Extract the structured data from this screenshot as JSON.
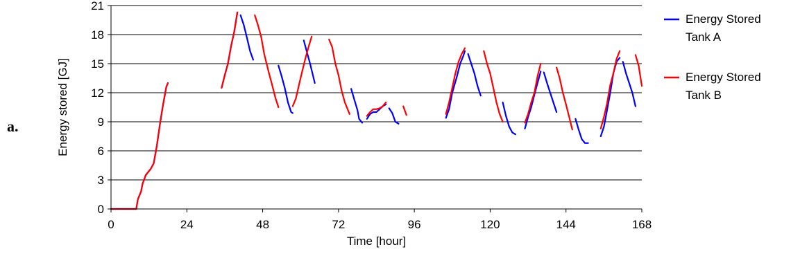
{
  "panel_label": "a.",
  "chart_data": {
    "type": "line",
    "title": "",
    "xlabel": "Time [hour]",
    "ylabel": "Energy stored [GJ]",
    "xlim": [
      0,
      168
    ],
    "ylim": [
      0,
      21
    ],
    "xticks": [
      0,
      24,
      48,
      72,
      96,
      120,
      144,
      168
    ],
    "yticks": [
      0,
      3,
      6,
      9,
      12,
      15,
      18,
      21
    ],
    "grid": "horizontal",
    "legend_position": "right",
    "series": [
      {
        "name_lines": [
          "Energy Stored",
          "Tank A"
        ],
        "color": "#0000ff",
        "segments": [
          [
            [
              0,
              0
            ],
            [
              8,
              0
            ],
            [
              8.5,
              1
            ],
            [
              9.5,
              1.8
            ],
            [
              10,
              2.6
            ],
            [
              11,
              3.5
            ],
            [
              12.5,
              4.1
            ],
            [
              13.5,
              4.7
            ],
            [
              14.5,
              6.5
            ],
            [
              15.5,
              8.8
            ],
            [
              16.5,
              10.8
            ],
            [
              17.5,
              12.6
            ],
            [
              18,
              13
            ]
          ],
          [
            [
              35,
              12.5
            ],
            [
              36,
              13.8
            ],
            [
              37,
              15
            ],
            [
              38,
              16.8
            ],
            [
              39,
              18.3
            ],
            [
              40,
              20.3
            ]
          ],
          [
            [
              41,
              20
            ],
            [
              42,
              19
            ],
            [
              43,
              17.7
            ],
            [
              44,
              16.3
            ],
            [
              45,
              15.4
            ]
          ],
          [
            [
              53,
              14.8
            ],
            [
              54,
              13.7
            ],
            [
              55,
              12.5
            ],
            [
              56,
              11
            ],
            [
              57,
              10
            ],
            [
              57.5,
              9.9
            ]
          ],
          [
            [
              61,
              17.4
            ],
            [
              62,
              16.2
            ],
            [
              63,
              15
            ],
            [
              64.5,
              13
            ]
          ],
          [
            [
              76,
              12.4
            ],
            [
              77,
              11.3
            ],
            [
              78,
              10.2
            ],
            [
              78.5,
              9.3
            ],
            [
              79.5,
              8.9
            ]
          ],
          [
            [
              81,
              9.3
            ],
            [
              82,
              9.8
            ],
            [
              83,
              10
            ],
            [
              84,
              10
            ],
            [
              85,
              10.3
            ],
            [
              86,
              10.6
            ],
            [
              87,
              10.8
            ]
          ],
          [
            [
              88,
              10.4
            ],
            [
              89,
              9.9
            ],
            [
              90,
              9
            ],
            [
              91,
              8.8
            ]
          ],
          [
            [
              106,
              9.4
            ],
            [
              107,
              10.3
            ],
            [
              108,
              12
            ],
            [
              109.5,
              13.7
            ],
            [
              110.5,
              15
            ],
            [
              111.5,
              15.8
            ],
            [
              112,
              16.3
            ]
          ],
          [
            [
              113,
              16
            ],
            [
              114,
              15
            ],
            [
              115,
              14
            ],
            [
              116,
              12.7
            ],
            [
              117,
              11.7
            ]
          ],
          [
            [
              124,
              11
            ],
            [
              125,
              9.6
            ],
            [
              126,
              8.5
            ],
            [
              127,
              7.9
            ],
            [
              128,
              7.7
            ]
          ],
          [
            [
              131,
              8.3
            ],
            [
              132,
              9.5
            ],
            [
              133,
              10.5
            ],
            [
              134,
              11.8
            ],
            [
              135,
              13
            ],
            [
              136,
              14.2
            ]
          ],
          [
            [
              137,
              14.1
            ],
            [
              138,
              13
            ],
            [
              139,
              12
            ],
            [
              140,
              11
            ],
            [
              141,
              10
            ]
          ],
          [
            [
              147,
              9.3
            ],
            [
              148,
              8.2
            ],
            [
              149,
              7.2
            ],
            [
              150,
              6.8
            ],
            [
              151,
              6.8
            ]
          ],
          [
            [
              155,
              7.5
            ],
            [
              156,
              8.5
            ],
            [
              157,
              10.2
            ],
            [
              158,
              12
            ],
            [
              159,
              14
            ],
            [
              160,
              15.2
            ],
            [
              161,
              15.6
            ]
          ],
          [
            [
              162,
              15.2
            ],
            [
              163,
              14
            ],
            [
              164,
              13
            ],
            [
              165,
              12
            ],
            [
              166,
              10.6
            ]
          ]
        ]
      },
      {
        "name_lines": [
          "Energy Stored",
          "Tank B"
        ],
        "color": "#ff0000",
        "segments": [
          [
            [
              0,
              0
            ],
            [
              8,
              0
            ],
            [
              8.5,
              1
            ],
            [
              9.5,
              1.8
            ],
            [
              10,
              2.6
            ],
            [
              11,
              3.5
            ],
            [
              12.5,
              4.1
            ],
            [
              13.5,
              4.7
            ],
            [
              14.5,
              6.5
            ],
            [
              15.5,
              8.8
            ],
            [
              16.5,
              10.8
            ],
            [
              17.5,
              12.6
            ],
            [
              18,
              13
            ]
          ],
          [
            [
              35,
              12.5
            ],
            [
              36,
              13.8
            ],
            [
              37,
              15
            ],
            [
              38,
              16.8
            ],
            [
              39,
              18.3
            ],
            [
              40,
              20.3
            ]
          ],
          [
            [
              45.5,
              20
            ],
            [
              46.5,
              19
            ],
            [
              47.5,
              17.8
            ],
            [
              48.5,
              16
            ],
            [
              50,
              14
            ],
            [
              51,
              12.8
            ],
            [
              52,
              11.5
            ],
            [
              53,
              10.5
            ]
          ],
          [
            [
              57.5,
              10.6
            ],
            [
              58.5,
              11.4
            ],
            [
              59.5,
              12.8
            ],
            [
              60.5,
              14.2
            ],
            [
              61.5,
              15.5
            ],
            [
              62.5,
              16.7
            ],
            [
              63.5,
              17.8
            ]
          ],
          [
            [
              69,
              17.5
            ],
            [
              70,
              16.7
            ],
            [
              71,
              15
            ],
            [
              72,
              13.8
            ],
            [
              73,
              12.2
            ],
            [
              74,
              11
            ],
            [
              75.5,
              9.8
            ]
          ],
          [
            [
              81,
              9.6
            ],
            [
              82,
              10
            ],
            [
              83,
              10.3
            ],
            [
              84,
              10.3
            ],
            [
              85,
              10.4
            ],
            [
              86,
              10.6
            ],
            [
              87,
              11
            ]
          ],
          [
            [
              92.5,
              10.6
            ],
            [
              93.5,
              9.7
            ]
          ],
          [
            [
              106,
              9.8
            ],
            [
              107,
              11
            ],
            [
              108,
              12.5
            ],
            [
              109,
              14
            ],
            [
              110,
              15.2
            ],
            [
              111,
              16
            ],
            [
              112,
              16.6
            ]
          ],
          [
            [
              118,
              16.3
            ],
            [
              119,
              15
            ],
            [
              120,
              14
            ],
            [
              121,
              12.5
            ],
            [
              122,
              11
            ],
            [
              123,
              9.8
            ],
            [
              124,
              9
            ]
          ],
          [
            [
              131,
              8.9
            ],
            [
              132,
              9.8
            ],
            [
              133,
              11
            ],
            [
              134,
              12
            ],
            [
              135,
              13.7
            ],
            [
              136,
              15
            ]
          ],
          [
            [
              141,
              14.6
            ],
            [
              142,
              13.5
            ],
            [
              143,
              12
            ],
            [
              144,
              10.8
            ],
            [
              145,
              9.5
            ],
            [
              146,
              8.2
            ]
          ],
          [
            [
              155,
              8.3
            ],
            [
              156,
              9.5
            ],
            [
              157,
              10.9
            ],
            [
              158,
              12.8
            ],
            [
              159,
              14
            ],
            [
              160,
              15.5
            ],
            [
              161,
              16.3
            ]
          ],
          [
            [
              166,
              15.9
            ],
            [
              167,
              14.8
            ],
            [
              168,
              12.7
            ]
          ]
        ]
      }
    ]
  }
}
